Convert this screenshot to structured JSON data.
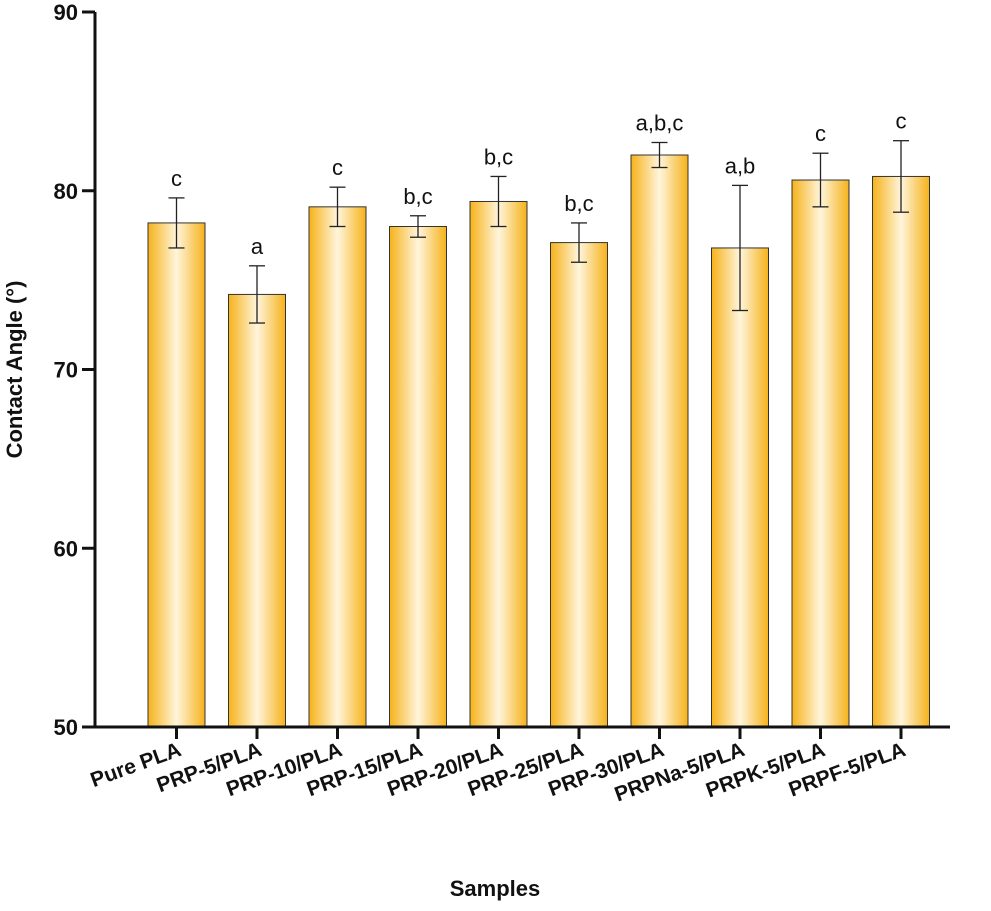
{
  "chart_data": {
    "type": "bar",
    "xlabel": "Samples",
    "ylabel": "Contact Angle (°)",
    "ylim": [
      50,
      90
    ],
    "yticks": [
      50,
      60,
      70,
      80,
      90
    ],
    "grid": false,
    "categories": [
      "Pure PLA",
      "PRP-5/PLA",
      "PRP-10/PLA",
      "PRP-15/PLA",
      "PRP-20/PLA",
      "PRP-25/PLA",
      "PRP-30/PLA",
      "PRPNa-5/PLA",
      "PRPK-5/PLA",
      "PRPF-5/PLA"
    ],
    "values": [
      78.2,
      74.2,
      79.1,
      78.0,
      79.4,
      77.1,
      82.0,
      76.8,
      80.6,
      80.8
    ],
    "errors": [
      1.4,
      1.6,
      1.1,
      0.6,
      1.4,
      1.1,
      0.7,
      3.5,
      1.5,
      2.0
    ],
    "significance_labels": [
      "c",
      "a",
      "c",
      "b,c",
      "b,c",
      "b,c",
      "a,b,c",
      "a,b",
      "c",
      "c"
    ],
    "colors": {
      "bar_edge": "#f6b21a",
      "bar_center": "#fff5dc",
      "bar_outline": "#333333",
      "axis": "#111111"
    }
  }
}
